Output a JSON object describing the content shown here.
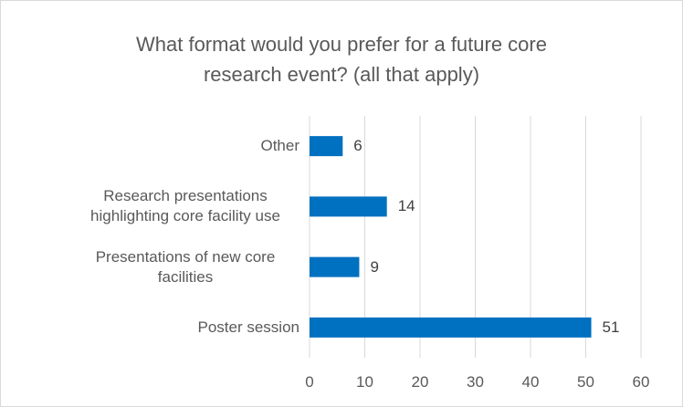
{
  "chart_data": {
    "type": "bar",
    "orientation": "horizontal",
    "title": "What format would you prefer for a future core research event? (all that apply)",
    "categories": [
      "Other",
      "Research presentations highlighting core facility use",
      "Presentations of new core facilities",
      "Poster session"
    ],
    "values": [
      6,
      14,
      9,
      51
    ],
    "color": "#0070c0",
    "xlim": [
      0,
      60
    ],
    "xticks": [
      0,
      10,
      20,
      30,
      40,
      50,
      60
    ],
    "grid": true
  }
}
